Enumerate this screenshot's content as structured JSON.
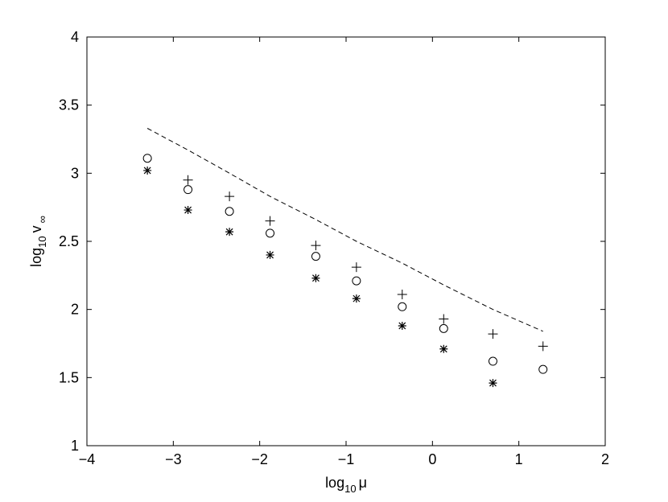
{
  "chart_data": {
    "type": "scatter",
    "title": "",
    "xlabel": {
      "base": "log",
      "sub": "10",
      "var": "μ"
    },
    "ylabel": {
      "base": "log",
      "sub": "10",
      "var": "v",
      "var_sub": "∞"
    },
    "xlim": [
      -4,
      2
    ],
    "ylim": [
      1,
      4
    ],
    "grid": false,
    "x_ticks": [
      -4,
      -3,
      -2,
      -1,
      0,
      1,
      2
    ],
    "x_tick_labels": [
      "−4",
      "−3",
      "−2",
      "−1",
      "0",
      "1",
      "2"
    ],
    "y_ticks": [
      1,
      1.5,
      2,
      2.5,
      3,
      3.5,
      4
    ],
    "y_tick_labels": [
      "1",
      "1.5",
      "2",
      "2.5",
      "3",
      "3.5",
      "4"
    ],
    "series": [
      {
        "marker": "dashed-line",
        "x": [
          -3.3,
          -2.83,
          -2.35,
          -1.88,
          -1.35,
          -0.88,
          -0.35,
          0.13,
          0.7,
          1.28
        ],
        "y": [
          3.33,
          3.17,
          3.0,
          2.83,
          2.66,
          2.5,
          2.34,
          2.18,
          2.0,
          1.84
        ]
      },
      {
        "marker": "plus",
        "x": [
          -2.83,
          -2.35,
          -1.88,
          -1.35,
          -0.88,
          -0.35,
          0.13,
          0.7,
          1.28
        ],
        "y": [
          2.95,
          2.83,
          2.65,
          2.47,
          2.31,
          2.11,
          1.93,
          1.82,
          1.73
        ]
      },
      {
        "marker": "circle",
        "x": [
          -3.3,
          -2.83,
          -2.35,
          -1.88,
          -1.35,
          -0.88,
          -0.35,
          0.13,
          0.7,
          1.28
        ],
        "y": [
          3.11,
          2.88,
          2.72,
          2.56,
          2.39,
          2.21,
          2.02,
          1.86,
          1.62,
          1.56
        ]
      },
      {
        "marker": "asterisk",
        "x": [
          -3.3,
          -2.83,
          -2.35,
          -1.88,
          -1.35,
          -0.88,
          -0.35,
          0.13,
          0.7
        ],
        "y": [
          3.02,
          2.73,
          2.57,
          2.4,
          2.23,
          2.08,
          1.88,
          1.71,
          1.46
        ]
      }
    ]
  }
}
